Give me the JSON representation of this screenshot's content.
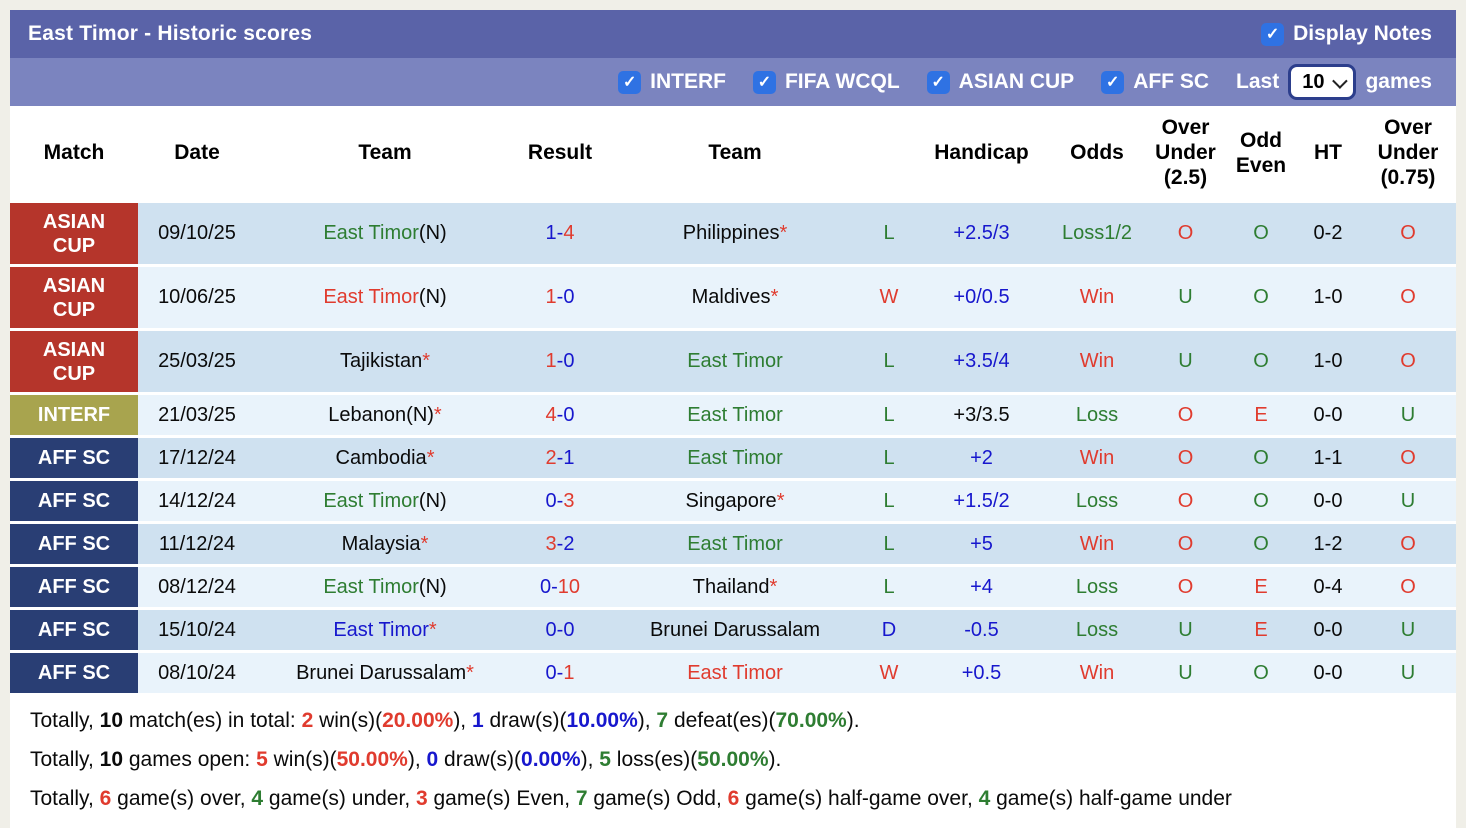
{
  "page": {
    "title": "East Timor - Historic scores",
    "display_notes_label": "Display Notes",
    "filter_labels": [
      "INTERF",
      "FIFA WCQL",
      "ASIAN CUP",
      "AFF SC"
    ],
    "last_label": "Last",
    "games_label": "games",
    "selected_games": "10",
    "colors": {
      "topbar": "#5a63a8",
      "filterbar": "#7b84bf",
      "checkbox_blue": "#2f72e3",
      "row_dark": "#cfe1f0",
      "row_light": "#e9f3fb",
      "text_red": "#e03b2e",
      "text_blue": "#1717cd",
      "text_green": "#2e7d32"
    }
  },
  "table": {
    "headers": [
      "Match",
      "Date",
      "Team",
      "Result",
      "Team",
      "",
      "Handicap",
      "Odds",
      "Over Under (2.5)",
      "Odd Even",
      "HT",
      "Over Under (0.75)"
    ],
    "rows": [
      {
        "comp": "ASIAN CUP",
        "comp_color": "#b5352b",
        "date": "09/10/25",
        "team1": {
          "name": "East Timor",
          "suffix": "(N)",
          "star": false,
          "color": "green"
        },
        "result": {
          "left": "1",
          "right": "4",
          "left_color": "blue",
          "right_color": "red"
        },
        "team2": {
          "name": "Philippines",
          "suffix": "",
          "star": true,
          "color": "black"
        },
        "wdl": {
          "t": "L",
          "c": "green"
        },
        "handicap": {
          "t": "+2.5/3",
          "c": "blue"
        },
        "odds": {
          "t": "Loss1/2",
          "c": "green"
        },
        "ou25": {
          "t": "O",
          "c": "red"
        },
        "oddeven": {
          "t": "O",
          "c": "green"
        },
        "ht": "0-2",
        "ou075": {
          "t": "O",
          "c": "red"
        }
      },
      {
        "comp": "ASIAN CUP",
        "comp_color": "#b5352b",
        "date": "10/06/25",
        "team1": {
          "name": "East Timor",
          "suffix": "(N)",
          "star": false,
          "color": "red"
        },
        "result": {
          "left": "1",
          "right": "0",
          "left_color": "red",
          "right_color": "blue"
        },
        "team2": {
          "name": "Maldives",
          "suffix": "",
          "star": true,
          "color": "black"
        },
        "wdl": {
          "t": "W",
          "c": "red"
        },
        "handicap": {
          "t": "+0/0.5",
          "c": "blue"
        },
        "odds": {
          "t": "Win",
          "c": "red"
        },
        "ou25": {
          "t": "U",
          "c": "green"
        },
        "oddeven": {
          "t": "O",
          "c": "green"
        },
        "ht": "1-0",
        "ou075": {
          "t": "O",
          "c": "red"
        }
      },
      {
        "comp": "ASIAN CUP",
        "comp_color": "#b5352b",
        "date": "25/03/25",
        "team1": {
          "name": "Tajikistan",
          "suffix": "",
          "star": true,
          "color": "black"
        },
        "result": {
          "left": "1",
          "right": "0",
          "left_color": "red",
          "right_color": "blue"
        },
        "team2": {
          "name": "East Timor",
          "suffix": "",
          "star": false,
          "color": "green"
        },
        "wdl": {
          "t": "L",
          "c": "green"
        },
        "handicap": {
          "t": "+3.5/4",
          "c": "blue"
        },
        "odds": {
          "t": "Win",
          "c": "red"
        },
        "ou25": {
          "t": "U",
          "c": "green"
        },
        "oddeven": {
          "t": "O",
          "c": "green"
        },
        "ht": "1-0",
        "ou075": {
          "t": "O",
          "c": "red"
        }
      },
      {
        "comp": "INTERF",
        "comp_color": "#a8a44e",
        "date": "21/03/25",
        "team1": {
          "name": "Lebanon",
          "suffix": "(N)",
          "star": true,
          "color": "black"
        },
        "result": {
          "left": "4",
          "right": "0",
          "left_color": "red",
          "right_color": "blue"
        },
        "team2": {
          "name": "East Timor",
          "suffix": "",
          "star": false,
          "color": "green"
        },
        "wdl": {
          "t": "L",
          "c": "green"
        },
        "handicap": {
          "t": "+3/3.5",
          "c": "black"
        },
        "odds": {
          "t": "Loss",
          "c": "green"
        },
        "ou25": {
          "t": "O",
          "c": "red"
        },
        "oddeven": {
          "t": "E",
          "c": "red"
        },
        "ht": "0-0",
        "ou075": {
          "t": "U",
          "c": "green"
        }
      },
      {
        "comp": "AFF SC",
        "comp_color": "#293e74",
        "date": "17/12/24",
        "team1": {
          "name": "Cambodia",
          "suffix": "",
          "star": true,
          "color": "black"
        },
        "result": {
          "left": "2",
          "right": "1",
          "left_color": "red",
          "right_color": "blue"
        },
        "team2": {
          "name": "East Timor",
          "suffix": "",
          "star": false,
          "color": "green"
        },
        "wdl": {
          "t": "L",
          "c": "green"
        },
        "handicap": {
          "t": "+2",
          "c": "blue"
        },
        "odds": {
          "t": "Win",
          "c": "red"
        },
        "ou25": {
          "t": "O",
          "c": "red"
        },
        "oddeven": {
          "t": "O",
          "c": "green"
        },
        "ht": "1-1",
        "ou075": {
          "t": "O",
          "c": "red"
        }
      },
      {
        "comp": "AFF SC",
        "comp_color": "#293e74",
        "date": "14/12/24",
        "team1": {
          "name": "East Timor",
          "suffix": "(N)",
          "star": false,
          "color": "green"
        },
        "result": {
          "left": "0",
          "right": "3",
          "left_color": "blue",
          "right_color": "red"
        },
        "team2": {
          "name": "Singapore",
          "suffix": "",
          "star": true,
          "color": "black"
        },
        "wdl": {
          "t": "L",
          "c": "green"
        },
        "handicap": {
          "t": "+1.5/2",
          "c": "blue"
        },
        "odds": {
          "t": "Loss",
          "c": "green"
        },
        "ou25": {
          "t": "O",
          "c": "red"
        },
        "oddeven": {
          "t": "O",
          "c": "green"
        },
        "ht": "0-0",
        "ou075": {
          "t": "U",
          "c": "green"
        }
      },
      {
        "comp": "AFF SC",
        "comp_color": "#293e74",
        "date": "11/12/24",
        "team1": {
          "name": "Malaysia",
          "suffix": "",
          "star": true,
          "color": "black"
        },
        "result": {
          "left": "3",
          "right": "2",
          "left_color": "red",
          "right_color": "blue"
        },
        "team2": {
          "name": "East Timor",
          "suffix": "",
          "star": false,
          "color": "green"
        },
        "wdl": {
          "t": "L",
          "c": "green"
        },
        "handicap": {
          "t": "+5",
          "c": "blue"
        },
        "odds": {
          "t": "Win",
          "c": "red"
        },
        "ou25": {
          "t": "O",
          "c": "red"
        },
        "oddeven": {
          "t": "O",
          "c": "green"
        },
        "ht": "1-2",
        "ou075": {
          "t": "O",
          "c": "red"
        }
      },
      {
        "comp": "AFF SC",
        "comp_color": "#293e74",
        "date": "08/12/24",
        "team1": {
          "name": "East Timor",
          "suffix": "(N)",
          "star": false,
          "color": "green"
        },
        "result": {
          "left": "0",
          "right": "10",
          "left_color": "blue",
          "right_color": "red"
        },
        "team2": {
          "name": "Thailand",
          "suffix": "",
          "star": true,
          "color": "black"
        },
        "wdl": {
          "t": "L",
          "c": "green"
        },
        "handicap": {
          "t": "+4",
          "c": "blue"
        },
        "odds": {
          "t": "Loss",
          "c": "green"
        },
        "ou25": {
          "t": "O",
          "c": "red"
        },
        "oddeven": {
          "t": "E",
          "c": "red"
        },
        "ht": "0-4",
        "ou075": {
          "t": "O",
          "c": "red"
        }
      },
      {
        "comp": "AFF SC",
        "comp_color": "#293e74",
        "date": "15/10/24",
        "team1": {
          "name": "East Timor",
          "suffix": "",
          "star": true,
          "color": "blue"
        },
        "result": {
          "left": "0",
          "right": "0",
          "left_color": "blue",
          "right_color": "blue"
        },
        "team2": {
          "name": "Brunei Darussalam",
          "suffix": "",
          "star": false,
          "color": "black"
        },
        "wdl": {
          "t": "D",
          "c": "blue"
        },
        "handicap": {
          "t": "-0.5",
          "c": "blue"
        },
        "odds": {
          "t": "Loss",
          "c": "green"
        },
        "ou25": {
          "t": "U",
          "c": "green"
        },
        "oddeven": {
          "t": "E",
          "c": "red"
        },
        "ht": "0-0",
        "ou075": {
          "t": "U",
          "c": "green"
        }
      },
      {
        "comp": "AFF SC",
        "comp_color": "#293e74",
        "date": "08/10/24",
        "team1": {
          "name": "Brunei Darussalam",
          "suffix": "",
          "star": true,
          "color": "black"
        },
        "result": {
          "left": "0",
          "right": "1",
          "left_color": "blue",
          "right_color": "red"
        },
        "team2": {
          "name": "East Timor",
          "suffix": "",
          "star": false,
          "color": "red"
        },
        "wdl": {
          "t": "W",
          "c": "red"
        },
        "handicap": {
          "t": "+0.5",
          "c": "blue"
        },
        "odds": {
          "t": "Win",
          "c": "red"
        },
        "ou25": {
          "t": "U",
          "c": "green"
        },
        "oddeven": {
          "t": "O",
          "c": "green"
        },
        "ht": "0-0",
        "ou075": {
          "t": "U",
          "c": "green"
        }
      }
    ]
  },
  "footer": {
    "lines": [
      [
        {
          "t": "Totally, ",
          "c": "black",
          "b": false
        },
        {
          "t": "10",
          "c": "black",
          "b": true
        },
        {
          "t": " match(es) in total: ",
          "c": "black",
          "b": false
        },
        {
          "t": "2",
          "c": "red",
          "b": true
        },
        {
          "t": " win(s)(",
          "c": "black",
          "b": false
        },
        {
          "t": "20.00%",
          "c": "red",
          "b": true
        },
        {
          "t": "), ",
          "c": "black",
          "b": false
        },
        {
          "t": "1",
          "c": "blue",
          "b": true
        },
        {
          "t": " draw(s)(",
          "c": "black",
          "b": false
        },
        {
          "t": "10.00%",
          "c": "blue",
          "b": true
        },
        {
          "t": "), ",
          "c": "black",
          "b": false
        },
        {
          "t": "7",
          "c": "green",
          "b": true
        },
        {
          "t": " defeat(es)(",
          "c": "black",
          "b": false
        },
        {
          "t": "70.00%",
          "c": "green",
          "b": true
        },
        {
          "t": ").",
          "c": "black",
          "b": false
        }
      ],
      [
        {
          "t": "Totally, ",
          "c": "black",
          "b": false
        },
        {
          "t": "10",
          "c": "black",
          "b": true
        },
        {
          "t": " games open: ",
          "c": "black",
          "b": false
        },
        {
          "t": "5",
          "c": "red",
          "b": true
        },
        {
          "t": " win(s)(",
          "c": "black",
          "b": false
        },
        {
          "t": "50.00%",
          "c": "red",
          "b": true
        },
        {
          "t": "), ",
          "c": "black",
          "b": false
        },
        {
          "t": "0",
          "c": "blue",
          "b": true
        },
        {
          "t": " draw(s)(",
          "c": "black",
          "b": false
        },
        {
          "t": "0.00%",
          "c": "blue",
          "b": true
        },
        {
          "t": "), ",
          "c": "black",
          "b": false
        },
        {
          "t": "5",
          "c": "green",
          "b": true
        },
        {
          "t": " loss(es)(",
          "c": "black",
          "b": false
        },
        {
          "t": "50.00%",
          "c": "green",
          "b": true
        },
        {
          "t": ").",
          "c": "black",
          "b": false
        }
      ],
      [
        {
          "t": "Totally, ",
          "c": "black",
          "b": false
        },
        {
          "t": "6",
          "c": "red",
          "b": true
        },
        {
          "t": " game(s) over, ",
          "c": "black",
          "b": false
        },
        {
          "t": "4",
          "c": "green",
          "b": true
        },
        {
          "t": " game(s) under, ",
          "c": "black",
          "b": false
        },
        {
          "t": "3",
          "c": "red",
          "b": true
        },
        {
          "t": " game(s) Even, ",
          "c": "black",
          "b": false
        },
        {
          "t": "7",
          "c": "green",
          "b": true
        },
        {
          "t": " game(s) Odd, ",
          "c": "black",
          "b": false
        },
        {
          "t": "6",
          "c": "red",
          "b": true
        },
        {
          "t": " game(s) half-game over, ",
          "c": "black",
          "b": false
        },
        {
          "t": "4",
          "c": "green",
          "b": true
        },
        {
          "t": " game(s) half-game under",
          "c": "black",
          "b": false
        }
      ]
    ]
  }
}
